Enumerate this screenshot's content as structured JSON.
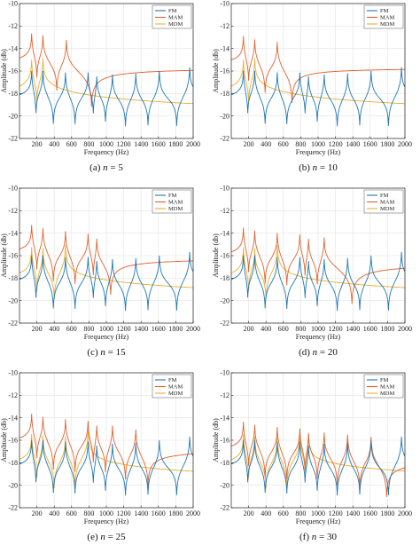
{
  "colors": {
    "FM": "#1f77b4",
    "MAM": "#e0622f",
    "MDM": "#e8b030"
  },
  "chart_data": [
    {
      "type": "line",
      "caption_prefix": "(a)",
      "caption_n": "n",
      "caption_value": "= 5",
      "xlabel": "Frequency (Hz)",
      "ylabel": "Amplitude (db)",
      "xlim": [
        0,
        2000
      ],
      "ylim": [
        -22,
        -10
      ],
      "xticks": [
        200,
        400,
        600,
        800,
        1000,
        1200,
        1400,
        1600,
        1800,
        2000
      ],
      "yticks": [
        -10,
        -12,
        -14,
        -16,
        -18,
        -20,
        -22
      ],
      "legend": [
        "FM",
        "MAM",
        "MDM"
      ],
      "legend_position": "top-right",
      "grid": true,
      "series": {
        "FM": {
          "poles": [
            140,
            270,
            530,
            790,
            890,
            1070,
            1340,
            1610,
            1960
          ],
          "zeros": [
            190,
            390,
            640,
            850,
            990,
            1220,
            1480,
            1810
          ],
          "baseline": -13.8
        },
        "MAM": {
          "poles": [
            140,
            270,
            540
          ],
          "zeros": [
            200,
            430,
            830
          ],
          "baseline": -15.7
        },
        "MDM": {
          "poles": [
            140,
            270
          ],
          "zeros": [
            200
          ],
          "baseline": -13.7
        }
      }
    },
    {
      "type": "line",
      "caption_prefix": "(b)",
      "caption_n": "n",
      "caption_value": "= 10",
      "xlabel": "Frequency (Hz)",
      "ylabel": "Amplitude (db)",
      "xlim": [
        0,
        2000
      ],
      "ylim": [
        -22,
        -10
      ],
      "xticks": [
        200,
        400,
        600,
        800,
        1000,
        1200,
        1400,
        1600,
        1800,
        2000
      ],
      "yticks": [
        -10,
        -12,
        -14,
        -16,
        -18,
        -20,
        -22
      ],
      "legend": [
        "FM",
        "MAM",
        "MDM"
      ],
      "legend_position": "top-right",
      "grid": true,
      "series": {
        "FM": {
          "poles": [
            140,
            270,
            530,
            790,
            890,
            1070,
            1340,
            1610,
            1960
          ],
          "zeros": [
            190,
            390,
            640,
            850,
            990,
            1220,
            1480,
            1810
          ],
          "baseline": -13.8
        },
        "MAM": {
          "poles": [
            140,
            270,
            530
          ],
          "zeros": [
            200,
            390,
            700
          ],
          "baseline": -15.7
        },
        "MDM": {
          "poles": [
            140,
            270
          ],
          "zeros": [
            200
          ],
          "baseline": -13.7
        }
      }
    },
    {
      "type": "line",
      "caption_prefix": "(c)",
      "caption_n": "n",
      "caption_value": "= 15",
      "xlabel": "Frequency (Hz)",
      "ylabel": "Amplitude (db)",
      "xlim": [
        0,
        2000
      ],
      "ylim": [
        -22,
        -10
      ],
      "xticks": [
        200,
        400,
        600,
        800,
        1000,
        1200,
        1400,
        1600,
        1800,
        2000
      ],
      "yticks": [
        -10,
        -12,
        -14,
        -16,
        -18,
        -20,
        -22
      ],
      "legend": [
        "FM",
        "MAM",
        "MDM"
      ],
      "legend_position": "top-right",
      "grid": true,
      "series": {
        "FM": {
          "poles": [
            140,
            270,
            530,
            790,
            890,
            1070,
            1340,
            1610,
            1960
          ],
          "zeros": [
            190,
            390,
            640,
            850,
            990,
            1220,
            1480,
            1810
          ],
          "baseline": -13.8
        },
        "MAM": {
          "poles": [
            140,
            270,
            530,
            790,
            890
          ],
          "zeros": [
            200,
            390,
            640,
            850,
            1050
          ],
          "baseline": -16.2
        },
        "MDM": {
          "poles": [
            140,
            270,
            530
          ],
          "zeros": [
            200,
            400
          ],
          "baseline": -13.7
        }
      }
    },
    {
      "type": "line",
      "caption_prefix": "(d)",
      "caption_n": "n",
      "caption_value": "= 20",
      "xlabel": "Frequency (Hz)",
      "ylabel": "Amplitude (db)",
      "xlim": [
        0,
        2000
      ],
      "ylim": [
        -22,
        -10
      ],
      "xticks": [
        200,
        400,
        600,
        800,
        1000,
        1200,
        1400,
        1600,
        1800,
        2000
      ],
      "yticks": [
        -10,
        -12,
        -14,
        -16,
        -18,
        -20,
        -22
      ],
      "legend": [
        "FM",
        "MAM",
        "MDM"
      ],
      "legend_position": "top-right",
      "grid": true,
      "series": {
        "FM": {
          "poles": [
            140,
            270,
            530,
            790,
            890,
            1070,
            1340,
            1610,
            1960
          ],
          "zeros": [
            190,
            390,
            640,
            850,
            990,
            1220,
            1480,
            1810
          ],
          "baseline": -13.8
        },
        "MAM": {
          "poles": [
            140,
            270,
            530,
            790,
            890,
            1070
          ],
          "zeros": [
            200,
            390,
            640,
            850,
            990,
            1390
          ],
          "baseline": -16.6
        },
        "MDM": {
          "poles": [
            140,
            270,
            530
          ],
          "zeros": [
            200,
            400
          ],
          "baseline": -13.7
        }
      }
    },
    {
      "type": "line",
      "caption_prefix": "(e)",
      "caption_n": "n",
      "caption_value": "= 25",
      "xlabel": "Frequency (Hz)",
      "ylabel": "Amplitude (db)",
      "xlim": [
        0,
        2000
      ],
      "ylim": [
        -22,
        -10
      ],
      "xticks": [
        200,
        400,
        600,
        800,
        1000,
        1200,
        1400,
        1600,
        1800,
        2000
      ],
      "yticks": [
        -10,
        -12,
        -14,
        -16,
        -18,
        -20,
        -22
      ],
      "legend": [
        "FM",
        "MAM",
        "MDM"
      ],
      "legend_position": "top-right",
      "grid": true,
      "series": {
        "FM": {
          "poles": [
            140,
            270,
            530,
            790,
            890,
            1070,
            1340,
            1610,
            1960
          ],
          "zeros": [
            190,
            390,
            640,
            850,
            990,
            1220,
            1480,
            1810
          ],
          "baseline": -13.8
        },
        "MAM": {
          "poles": [
            140,
            270,
            530,
            790,
            890,
            1070,
            1340
          ],
          "zeros": [
            200,
            390,
            640,
            850,
            990,
            1220,
            1480
          ],
          "baseline": -16.7
        },
        "MDM": {
          "poles": [
            140,
            270,
            530,
            790
          ],
          "zeros": [
            200,
            400,
            640
          ],
          "baseline": -13.7
        }
      }
    },
    {
      "type": "line",
      "caption_prefix": "(f)",
      "caption_n": "n",
      "caption_value": "= 30",
      "xlabel": "Frequency (Hz)",
      "ylabel": "Amplitude (db)",
      "xlim": [
        0,
        2000
      ],
      "ylim": [
        -22,
        -10
      ],
      "xticks": [
        200,
        400,
        600,
        800,
        1000,
        1200,
        1400,
        1600,
        1800,
        2000
      ],
      "yticks": [
        -10,
        -12,
        -14,
        -16,
        -18,
        -20,
        -22
      ],
      "legend": [
        "FM",
        "MAM",
        "MDM"
      ],
      "legend_position": "top-right",
      "grid": true,
      "series": {
        "FM": {
          "poles": [
            140,
            270,
            530,
            790,
            890,
            1070,
            1340,
            1610,
            1960
          ],
          "zeros": [
            190,
            390,
            640,
            850,
            990,
            1220,
            1480,
            1810
          ],
          "baseline": -13.8
        },
        "MAM": {
          "poles": [
            140,
            270,
            530,
            790,
            890,
            1070,
            1340,
            1610
          ],
          "zeros": [
            200,
            390,
            640,
            850,
            990,
            1220,
            1480,
            1790
          ],
          "baseline": -17.5
        },
        "MDM": {
          "poles": [
            140,
            270,
            530,
            790,
            890
          ],
          "zeros": [
            200,
            400,
            640,
            850
          ],
          "baseline": -13.7
        }
      }
    }
  ]
}
